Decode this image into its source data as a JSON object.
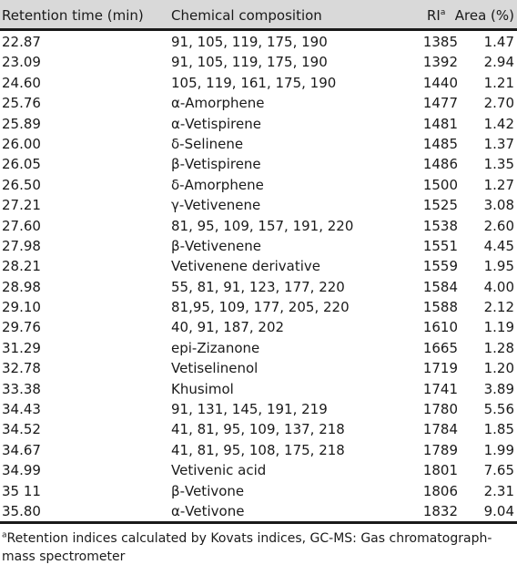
{
  "table": {
    "headers": {
      "retention_time": "Retention time (min)",
      "composition": "Chemical composition",
      "ri": "RI",
      "ri_sup": "a",
      "area": "Area (%)"
    },
    "rows": [
      {
        "rt": "22.87",
        "comp": "91, 105, 119, 175, 190",
        "ri": "1385",
        "area": "1.47"
      },
      {
        "rt": "23.09",
        "comp": "91, 105, 119, 175, 190",
        "ri": "1392",
        "area": "2.94"
      },
      {
        "rt": "24.60",
        "comp": "105, 119, 161, 175, 190",
        "ri": "1440",
        "area": "1.21"
      },
      {
        "rt": "25.76",
        "comp": "α-Amorphene",
        "ri": "1477",
        "area": "2.70"
      },
      {
        "rt": "25.89",
        "comp": "α-Vetispirene",
        "ri": "1481",
        "area": "1.42"
      },
      {
        "rt": "26.00",
        "comp": "δ-Selinene",
        "ri": "1485",
        "area": "1.37"
      },
      {
        "rt": "26.05",
        "comp": "β-Vetispirene",
        "ri": "1486",
        "area": "1.35"
      },
      {
        "rt": "26.50",
        "comp": "δ-Amorphene",
        "ri": "1500",
        "area": "1.27"
      },
      {
        "rt": "27.21",
        "comp": "γ-Vetivenene",
        "ri": "1525",
        "area": "3.08"
      },
      {
        "rt": "27.60",
        "comp": "81, 95, 109, 157, 191, 220",
        "ri": "1538",
        "area": "2.60"
      },
      {
        "rt": "27.98",
        "comp": "β-Vetivenene",
        "ri": "1551",
        "area": "4.45"
      },
      {
        "rt": "28.21",
        "comp": "Vetivenene derivative",
        "ri": "1559",
        "area": "1.95"
      },
      {
        "rt": "28.98",
        "comp": "55, 81, 91, 123, 177, 220",
        "ri": "1584",
        "area": "4.00"
      },
      {
        "rt": "29.10",
        "comp": "81,95, 109, 177, 205, 220",
        "ri": "1588",
        "area": "2.12"
      },
      {
        "rt": "29.76",
        "comp": "40, 91, 187, 202",
        "ri": "1610",
        "area": "1.19"
      },
      {
        "rt": "31.29",
        "comp": "epi-Zizanone",
        "ri": "1665",
        "area": "1.28"
      },
      {
        "rt": "32.78",
        "comp": "Vetiselinenol",
        "ri": "1719",
        "area": "1.20"
      },
      {
        "rt": "33.38",
        "comp": "Khusimol",
        "ri": "1741",
        "area": "3.89"
      },
      {
        "rt": "34.43",
        "comp": "91, 131, 145, 191, 219",
        "ri": "1780",
        "area": "5.56"
      },
      {
        "rt": "34.52",
        "comp": "41, 81, 95, 109, 137, 218",
        "ri": "1784",
        "area": "1.85"
      },
      {
        "rt": "34.67",
        "comp": "41, 81, 95, 108, 175, 218",
        "ri": "1789",
        "area": "1.99"
      },
      {
        "rt": "34.99",
        "comp": "Vetivenic acid",
        "ri": "1801",
        "area": "7.65"
      },
      {
        "rt": "35 11",
        "comp": "β-Vetivone",
        "ri": "1806",
        "area": "2.31"
      },
      {
        "rt": "35.80",
        "comp": "α-Vetivone",
        "ri": "1832",
        "area": "9.04"
      }
    ]
  },
  "footnote": {
    "sup": "a",
    "text": "Retention indices calculated by Kovats indices, GC-MS: Gas chromatograph-mass spectrometer"
  }
}
